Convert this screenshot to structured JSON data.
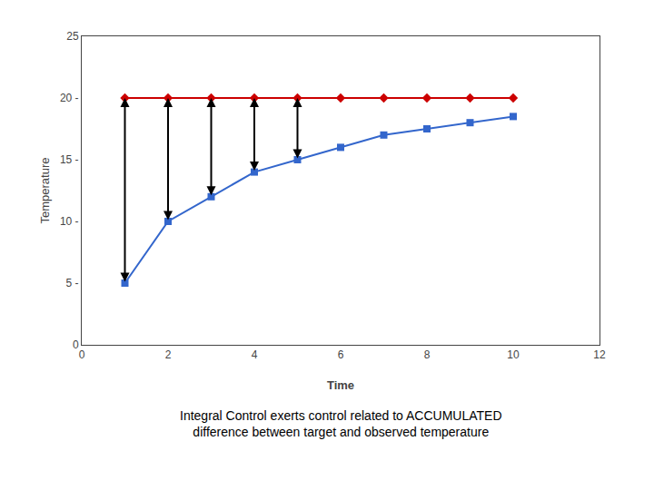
{
  "chart_data": {
    "type": "line",
    "x": [
      1,
      2,
      3,
      4,
      5,
      6,
      7,
      8,
      9,
      10
    ],
    "series": [
      {
        "color": "#cc0000",
        "marker": "diamond",
        "values": [
          20,
          20,
          20,
          20,
          20,
          20,
          20,
          20,
          20,
          20
        ]
      },
      {
        "color": "#3366cc",
        "marker": "square",
        "values": [
          5,
          10,
          12,
          14,
          15,
          16,
          17,
          17.5,
          18,
          18.5
        ]
      },
      {
        "type": "arrow",
        "color": "#000000",
        "x": [
          1,
          2,
          3,
          4,
          5
        ],
        "base": [
          5,
          10,
          12,
          14,
          15
        ],
        "values": [
          20,
          20,
          20,
          20,
          20
        ]
      }
    ],
    "xlabel": "Time",
    "ylabel": "Temperature",
    "xlim": [
      0,
      12
    ],
    "ylim": [
      0,
      25
    ],
    "xticks": [
      0,
      2,
      4,
      6,
      8,
      10,
      12
    ],
    "yticks": [
      0,
      {
        "value": 5,
        "label": "5 -"
      },
      {
        "value": 10,
        "label": "10 -"
      },
      {
        "value": 15,
        "label": "15 -"
      },
      {
        "value": 20,
        "label": "20 -"
      },
      25
    ],
    "annotations": [
      "Integral Control exerts control related to ACCUMULATED",
      "difference between target and observed temperature"
    ],
    "grid": false
  }
}
